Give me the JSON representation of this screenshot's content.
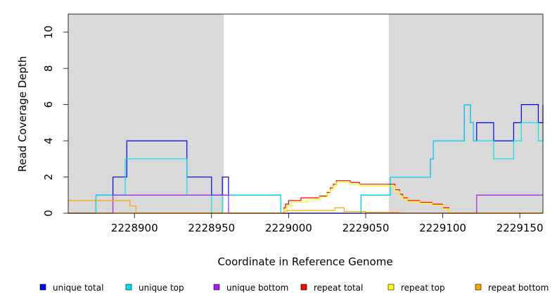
{
  "chart_data": {
    "type": "line",
    "title": "",
    "xlabel": "Coordinate in Reference Genome",
    "ylabel": "Read Coverage Depth",
    "xlim": [
      2228857,
      2229165
    ],
    "ylim": [
      0,
      11
    ],
    "x_ticks": [
      2228900,
      2228950,
      2229000,
      2229050,
      2229100,
      2229150
    ],
    "x_tick_labels": [
      "2228900",
      "2228950",
      "2229000",
      "2229050",
      "2229100",
      "2229150"
    ],
    "y_ticks": [
      0,
      2,
      4,
      6,
      8,
      10
    ],
    "y_tick_labels": [
      "0",
      "2",
      "4",
      "6",
      "8",
      "10"
    ],
    "shaded_regions": [
      {
        "x0": 2228857,
        "x1": 2228958,
        "color": "#d9d9d9"
      },
      {
        "x0": 2229065,
        "x1": 2229165,
        "color": "#d9d9d9"
      }
    ],
    "legend_position": "bottom",
    "series": [
      {
        "name": "unique total",
        "color": "#0000ff",
        "steps": [
          [
            2228857,
            0
          ],
          [
            2228875,
            1
          ],
          [
            2228886,
            2
          ],
          [
            2228895,
            4
          ],
          [
            2228934,
            2
          ],
          [
            2228950,
            1
          ],
          [
            2228957,
            2
          ],
          [
            2228961,
            1
          ],
          [
            2228995,
            0
          ],
          [
            2229047,
            1
          ],
          [
            2229066,
            2
          ],
          [
            2229092,
            3
          ],
          [
            2229094,
            4
          ],
          [
            2229114,
            6
          ],
          [
            2229118,
            5
          ],
          [
            2229120,
            4
          ],
          [
            2229122,
            5
          ],
          [
            2229133,
            4
          ],
          [
            2229146,
            5
          ],
          [
            2229151,
            6
          ],
          [
            2229162,
            5
          ],
          [
            2229165,
            6
          ]
        ]
      },
      {
        "name": "unique top",
        "color": "#00e5ee",
        "steps": [
          [
            2228857,
            0
          ],
          [
            2228875,
            1
          ],
          [
            2228894,
            3
          ],
          [
            2228934,
            1
          ],
          [
            2228950,
            0
          ],
          [
            2228957,
            1
          ],
          [
            2228995,
            0
          ],
          [
            2229047,
            1
          ],
          [
            2229066,
            2
          ],
          [
            2229092,
            3
          ],
          [
            2229094,
            4
          ],
          [
            2229114,
            6
          ],
          [
            2229118,
            5
          ],
          [
            2229120,
            4
          ],
          [
            2229133,
            3
          ],
          [
            2229146,
            4
          ],
          [
            2229151,
            5
          ],
          [
            2229162,
            4
          ],
          [
            2229165,
            5
          ]
        ]
      },
      {
        "name": "unique bottom",
        "color": "#a020f0",
        "steps": [
          [
            2228857,
            0
          ],
          [
            2228886,
            1
          ],
          [
            2228961,
            0
          ],
          [
            2229122,
            1
          ],
          [
            2229165,
            1
          ]
        ]
      },
      {
        "name": "repeat total",
        "color": "#ff0000",
        "steps": [
          [
            2228857,
            0
          ],
          [
            2228997,
            0.3
          ],
          [
            2228998,
            0.5
          ],
          [
            2229000,
            0.7
          ],
          [
            2229008,
            0.85
          ],
          [
            2229020,
            0.95
          ],
          [
            2229025,
            1.15
          ],
          [
            2229027,
            1.4
          ],
          [
            2229029,
            1.6
          ],
          [
            2229031,
            1.8
          ],
          [
            2229040,
            1.7
          ],
          [
            2229046,
            1.6
          ],
          [
            2229069,
            1.3
          ],
          [
            2229072,
            1.05
          ],
          [
            2229074,
            0.85
          ],
          [
            2229077,
            0.7
          ],
          [
            2229085,
            0.6
          ],
          [
            2229093,
            0.5
          ],
          [
            2229100,
            0.3
          ],
          [
            2229104,
            0
          ],
          [
            2229165,
            0
          ]
        ]
      },
      {
        "name": "repeat top",
        "color": "#ffff00",
        "steps": [
          [
            2228857,
            0
          ],
          [
            2228997,
            0.2
          ],
          [
            2228999,
            0.4
          ],
          [
            2229002,
            0.6
          ],
          [
            2229012,
            0.75
          ],
          [
            2229020,
            0.9
          ],
          [
            2229025,
            1.1
          ],
          [
            2229027,
            1.3
          ],
          [
            2229029,
            1.5
          ],
          [
            2229031,
            1.7
          ],
          [
            2229040,
            1.6
          ],
          [
            2229046,
            1.5
          ],
          [
            2229069,
            1.2
          ],
          [
            2229072,
            0.95
          ],
          [
            2229074,
            0.8
          ],
          [
            2229077,
            0.65
          ],
          [
            2229085,
            0.55
          ],
          [
            2229093,
            0.45
          ],
          [
            2229100,
            0.25
          ],
          [
            2229104,
            0
          ],
          [
            2229165,
            0
          ]
        ]
      },
      {
        "name": "repeat bottom",
        "color": "#ffa500",
        "steps": [
          [
            2228857,
            0.7
          ],
          [
            2228897,
            0.4
          ],
          [
            2228901,
            0
          ],
          [
            2228997,
            0.1
          ],
          [
            2228999,
            0.15
          ],
          [
            2229030,
            0.3
          ],
          [
            2229036,
            0.1
          ],
          [
            2229050,
            0.05
          ],
          [
            2229072,
            0
          ],
          [
            2229165,
            0
          ]
        ]
      }
    ]
  }
}
